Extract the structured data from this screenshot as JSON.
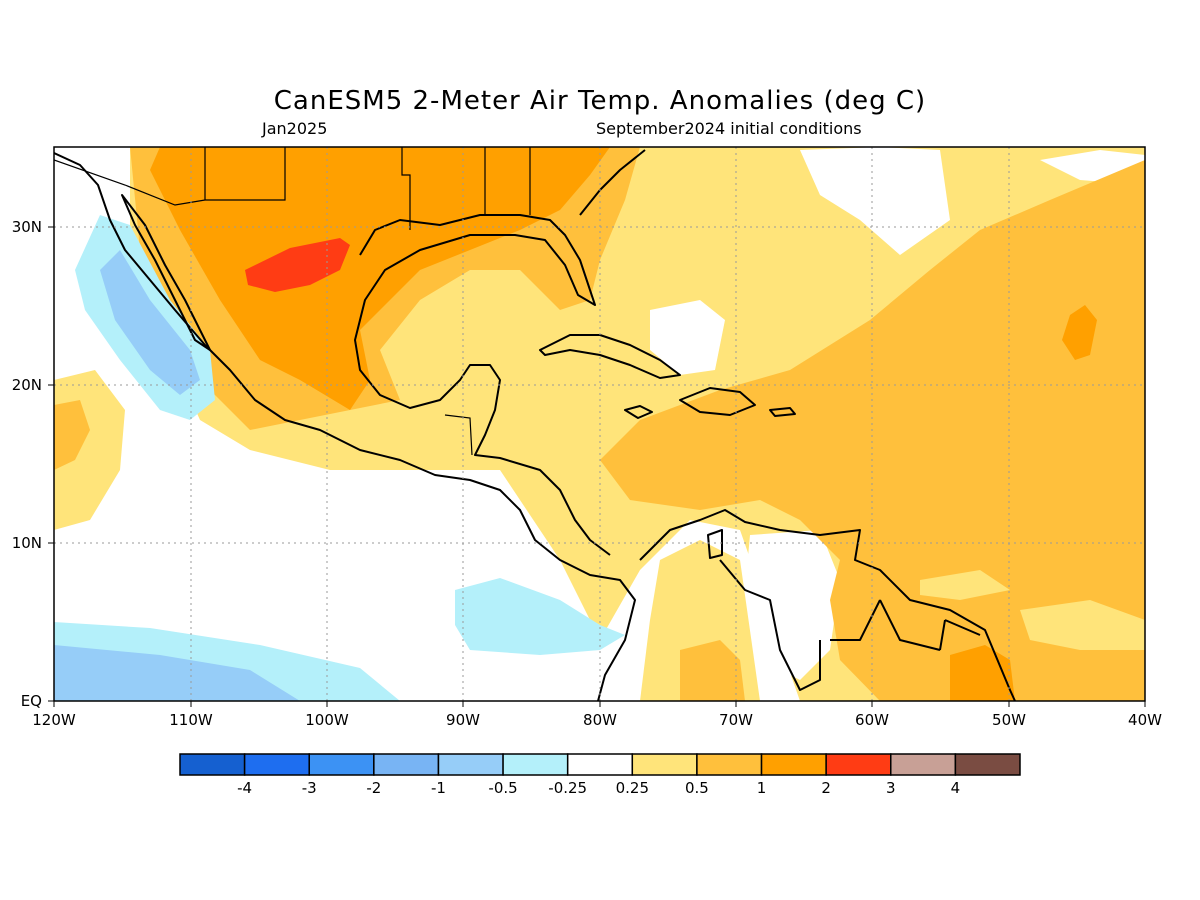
{
  "title": "CanESM5 2-Meter Air Temp. Anomalies (deg C)",
  "valid_month": "Jan2025",
  "init_text": "September2024 initial conditions",
  "lat_labels": [
    "30N",
    "20N",
    "10N",
    "EQ"
  ],
  "lon_labels": [
    "120W",
    "110W",
    "100W",
    "90W",
    "80W",
    "70W",
    "60W",
    "50W",
    "40W"
  ],
  "colorbar": {
    "colors": [
      "#1560d0",
      "#1e6ef0",
      "#3c92f4",
      "#78b4f4",
      "#96cdf8",
      "#b4f0fa",
      "#ffffff",
      "#ffe47a",
      "#ffc03c",
      "#ffa000",
      "#ff3c14",
      "#c8a096",
      "#7a4c42"
    ],
    "labels": [
      "-4",
      "-3",
      "-2",
      "-1",
      "-0.5",
      "-0.25",
      "0.25",
      "0.5",
      "1",
      "2",
      "3",
      "4"
    ]
  },
  "colors": {
    "land_outline": "#000000",
    "grid": "#9a9a9a",
    "neutral": "#ffffff",
    "light_yellow": "#ffe47a",
    "orange_light": "#ffc03c",
    "orange": "#ffa000",
    "red": "#ff3c14",
    "light_blue": "#b4f0fa",
    "mid_blue": "#96cdf8",
    "blue": "#78b4f4"
  }
}
